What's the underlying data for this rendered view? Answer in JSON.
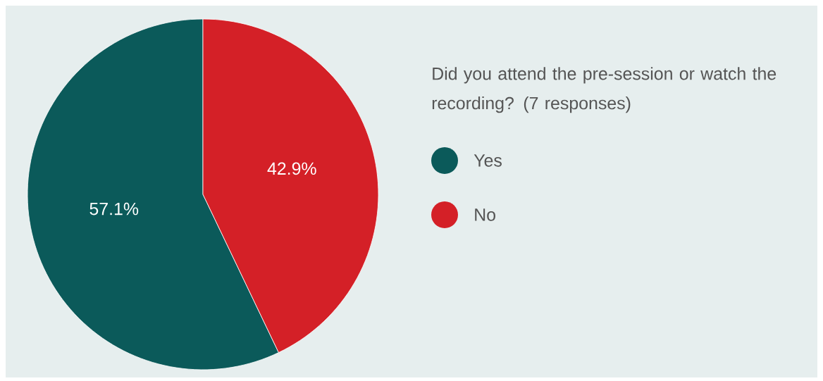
{
  "chart_data": {
    "type": "pie",
    "legend_title": "Did you attend the pre-session or watch the recording? (7 responses)",
    "categories": [
      "Yes",
      "No"
    ],
    "values": [
      57.1,
      42.9
    ],
    "colors": [
      "#0b5a5a",
      "#d42027"
    ],
    "value_labels": [
      "57.1%",
      "42.9%"
    ],
    "legend": "right"
  }
}
